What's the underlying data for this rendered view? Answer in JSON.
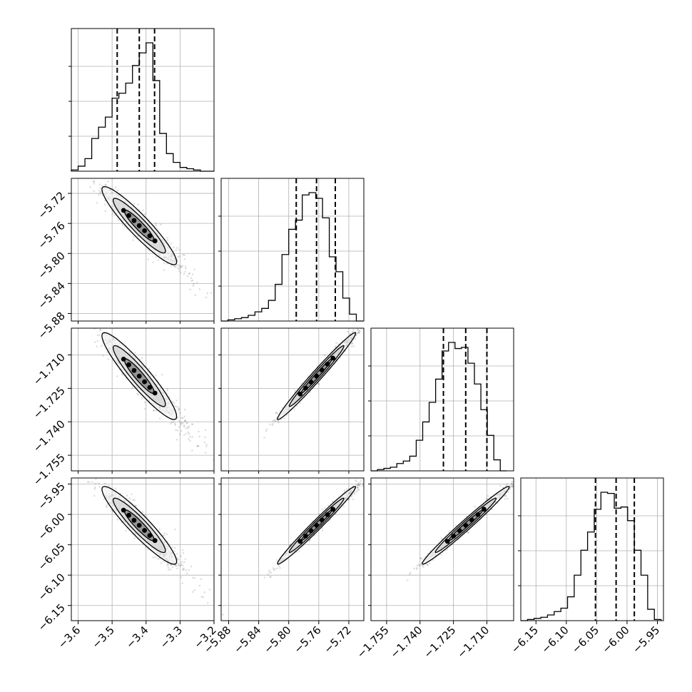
{
  "chart_data": {
    "type": "corner",
    "parameters": [
      {
        "range": [
          -3.62,
          -3.2
        ],
        "ticks": [
          "-3.6",
          "-3.5",
          "-3.4",
          "-3.3",
          "-3.2"
        ],
        "tick_values": [
          -3.6,
          -3.5,
          -3.4,
          -3.3,
          -3.2
        ],
        "quantiles": [
          -3.485,
          -3.42,
          -3.375
        ]
      },
      {
        "range": [
          -5.89,
          -5.7
        ],
        "ticks": [
          "-5.88",
          "-5.84",
          "-5.80",
          "-5.76",
          "-5.72"
        ],
        "tick_values": [
          -5.88,
          -5.84,
          -5.8,
          -5.76,
          -5.72
        ],
        "quantiles": [
          -5.79,
          -5.763,
          -5.738
        ]
      },
      {
        "range": [
          -1.762,
          -1.698
        ],
        "ticks": [
          "-1.755",
          "-1.740",
          "-1.725",
          "-1.710"
        ],
        "tick_values": [
          -1.755,
          -1.74,
          -1.725,
          -1.71
        ],
        "quantiles": [
          -1.7295,
          -1.7195,
          -1.71
        ]
      },
      {
        "range": [
          -6.175,
          -5.94
        ],
        "ticks": [
          "-6.15",
          "-6.10",
          "-6.05",
          "-6.00",
          "-5.95"
        ],
        "tick_values": [
          -6.15,
          -6.1,
          -6.05,
          -6.0,
          -5.95
        ],
        "quantiles": [
          -6.052,
          -6.018,
          -5.988
        ]
      }
    ],
    "histograms": [
      {
        "bins": [
          -3.62,
          -3.6,
          -3.58,
          -3.56,
          -3.54,
          -3.52,
          -3.5,
          -3.48,
          -3.46,
          -3.44,
          -3.42,
          -3.4,
          -3.38,
          -3.36,
          -3.34,
          -3.32,
          -3.3,
          -3.28,
          -3.26,
          -3.24,
          -3.22,
          -3.2
        ],
        "counts": [
          1,
          4,
          10,
          26,
          35,
          43,
          58,
          62,
          70,
          84,
          94,
          102,
          72,
          30,
          14,
          7,
          3,
          2,
          1,
          0,
          0
        ]
      },
      {
        "bins": [
          -5.89,
          -5.881,
          -5.872,
          -5.863,
          -5.854,
          -5.845,
          -5.836,
          -5.827,
          -5.818,
          -5.809,
          -5.8,
          -5.791,
          -5.782,
          -5.773,
          -5.764,
          -5.755,
          -5.746,
          -5.737,
          -5.728,
          -5.719,
          -5.71,
          -5.701
        ],
        "counts": [
          0,
          1,
          2,
          3,
          5,
          8,
          11,
          18,
          32,
          58,
          80,
          88,
          110,
          112,
          107,
          90,
          56,
          43,
          20,
          6,
          0
        ]
      },
      {
        "bins": [
          -1.762,
          -1.7591,
          -1.7562,
          -1.7533,
          -1.7504,
          -1.7475,
          -1.7446,
          -1.7417,
          -1.7388,
          -1.7359,
          -1.733,
          -1.7301,
          -1.7272,
          -1.7243,
          -1.7214,
          -1.7185,
          -1.7156,
          -1.7127,
          -1.7098,
          -1.7069,
          -1.704,
          -1.7011
        ],
        "counts": [
          0,
          1,
          2,
          3,
          6,
          8,
          12,
          25,
          40,
          56,
          75,
          98,
          105,
          100,
          101,
          88,
          71,
          50,
          29,
          9,
          0
        ]
      },
      {
        "bins": [
          -6.175,
          -6.164,
          -6.153,
          -6.142,
          -6.131,
          -6.12,
          -6.109,
          -6.098,
          -6.087,
          -6.076,
          -6.065,
          -6.054,
          -6.043,
          -6.032,
          -6.021,
          -6.01,
          -5.999,
          -5.988,
          -5.977,
          -5.966,
          -5.955,
          -5.944
        ],
        "counts": [
          0,
          1,
          2,
          3,
          5,
          8,
          11,
          21,
          40,
          62,
          78,
          98,
          113,
          112,
          99,
          100,
          88,
          62,
          40,
          10,
          1
        ]
      }
    ],
    "panels_2d": [
      {
        "x": 0,
        "y": 1,
        "sign": -1
      },
      {
        "x": 0,
        "y": 2,
        "sign": -1
      },
      {
        "x": 1,
        "y": 2,
        "sign": 1
      },
      {
        "x": 0,
        "y": 3,
        "sign": -1
      },
      {
        "x": 1,
        "y": 3,
        "sign": 1
      },
      {
        "x": 2,
        "y": 3,
        "sign": 1
      }
    ],
    "grid": true,
    "legend": "none"
  }
}
